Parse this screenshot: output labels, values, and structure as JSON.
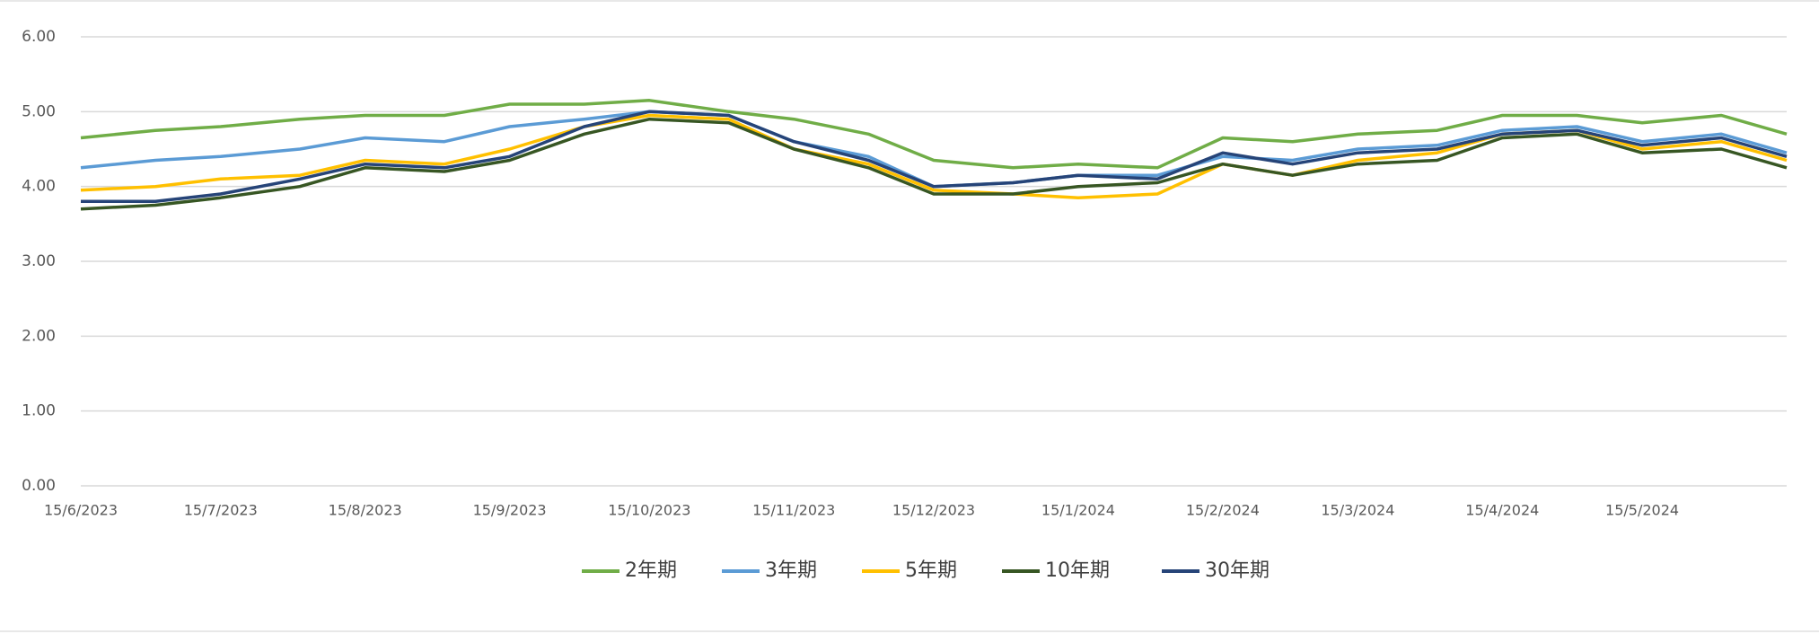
{
  "chart_data": {
    "type": "line",
    "x": [
      "15/6/2023",
      "1/7/2023",
      "15/7/2023",
      "1/8/2023",
      "15/8/2023",
      "1/9/2023",
      "15/9/2023",
      "1/10/2023",
      "15/10/2023",
      "1/11/2023",
      "15/11/2023",
      "1/12/2023",
      "15/12/2023",
      "1/1/2024",
      "15/1/2024",
      "1/2/2024",
      "15/2/2024",
      "1/3/2024",
      "15/3/2024",
      "1/4/2024",
      "15/4/2024",
      "1/5/2024",
      "15/5/2024",
      "1/6/2024",
      "15/6/2024"
    ],
    "xlim": [
      "15/6/2023",
      "15/6/2024"
    ],
    "xticks": [
      "15/6/2023",
      "15/7/2023",
      "15/8/2023",
      "15/9/2023",
      "15/10/2023",
      "15/11/2023",
      "15/12/2023",
      "15/1/2024",
      "15/2/2024",
      "15/3/2024",
      "15/4/2024",
      "15/5/2024"
    ],
    "ylim": [
      0,
      6
    ],
    "yticks": [
      {
        "value": 0,
        "label": "0.00"
      },
      {
        "value": 1,
        "label": "1.00"
      },
      {
        "value": 2,
        "label": "2.00"
      },
      {
        "value": 3,
        "label": "3.00"
      },
      {
        "value": 4,
        "label": "4.00"
      },
      {
        "value": 5,
        "label": "5.00"
      },
      {
        "value": 6,
        "label": "6.00"
      }
    ],
    "grid": true,
    "legend": "bottom",
    "series": [
      {
        "name": "2年期",
        "color": "#70ad47",
        "values": [
          4.65,
          4.75,
          4.8,
          4.9,
          4.95,
          4.95,
          5.1,
          5.1,
          5.15,
          5.0,
          4.9,
          4.7,
          4.35,
          4.25,
          4.3,
          4.25,
          4.65,
          4.6,
          4.7,
          4.75,
          4.95,
          4.95,
          4.85,
          4.95,
          4.7
        ]
      },
      {
        "name": "3年期",
        "color": "#5b9bd5",
        "values": [
          4.25,
          4.35,
          4.4,
          4.5,
          4.65,
          4.6,
          4.8,
          4.9,
          5.0,
          4.95,
          4.6,
          4.4,
          4.0,
          4.05,
          4.15,
          4.15,
          4.4,
          4.35,
          4.5,
          4.55,
          4.75,
          4.8,
          4.6,
          4.7,
          4.45
        ]
      },
      {
        "name": "5年期",
        "color": "#ffc000",
        "values": [
          3.95,
          4.0,
          4.1,
          4.15,
          4.35,
          4.3,
          4.5,
          4.8,
          4.95,
          4.9,
          4.5,
          4.3,
          3.95,
          3.9,
          3.85,
          3.9,
          4.3,
          4.15,
          4.35,
          4.45,
          4.7,
          4.75,
          4.5,
          4.6,
          4.35
        ]
      },
      {
        "name": "10年期",
        "color": "#375623",
        "values": [
          3.7,
          3.75,
          3.85,
          4.0,
          4.25,
          4.2,
          4.35,
          4.7,
          4.9,
          4.85,
          4.5,
          4.25,
          3.9,
          3.9,
          4.0,
          4.05,
          4.3,
          4.15,
          4.3,
          4.35,
          4.65,
          4.7,
          4.45,
          4.5,
          4.25
        ]
      },
      {
        "name": "30年期",
        "color": "#264478",
        "values": [
          3.8,
          3.8,
          3.9,
          4.1,
          4.3,
          4.25,
          4.4,
          4.8,
          5.0,
          4.95,
          4.6,
          4.35,
          4.0,
          4.05,
          4.15,
          4.1,
          4.45,
          4.3,
          4.45,
          4.5,
          4.7,
          4.75,
          4.55,
          4.65,
          4.4
        ]
      }
    ]
  }
}
